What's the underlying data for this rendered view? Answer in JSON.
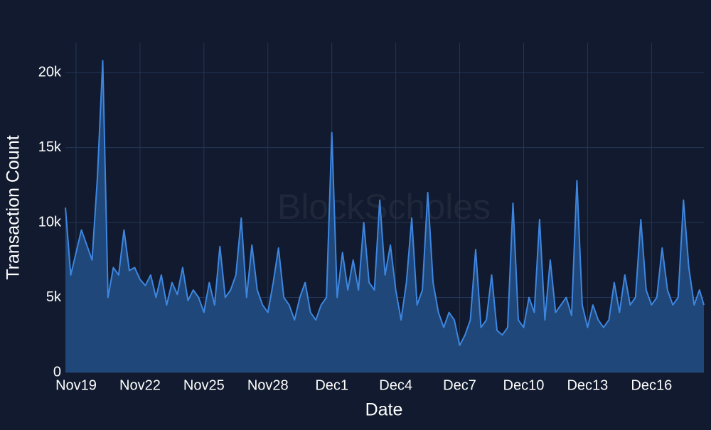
{
  "chart_data": {
    "type": "area",
    "watermark": "BlockScholes",
    "x_label": "Date",
    "y_label": "Transaction Count",
    "line_color": "#3d86e0",
    "fill_color": "#1f4779",
    "grid": true,
    "xlim": [
      "11-18 12:00",
      "12-18 11:00"
    ],
    "ylim": [
      0,
      22000
    ],
    "yticks": [
      0,
      {
        "value": 5000,
        "label": "5k"
      },
      {
        "value": 10000,
        "label": "10k"
      },
      {
        "value": 15000,
        "label": "15k"
      },
      {
        "value": 20000,
        "label": "20k"
      }
    ],
    "xticks": [
      {
        "value": "11-19 00:00",
        "label": "Nov19"
      },
      {
        "value": "11-22 00:00",
        "label": "Nov22"
      },
      {
        "value": "11-25 00:00",
        "label": "Nov25"
      },
      {
        "value": "11-28 00:00",
        "label": "Nov28"
      },
      {
        "value": "12-01 00:00",
        "label": "Dec1"
      },
      {
        "value": "12-04 00:00",
        "label": "Dec4"
      },
      {
        "value": "12-07 00:00",
        "label": "Dec7"
      },
      {
        "value": "12-10 00:00",
        "label": "Dec10"
      },
      {
        "value": "12-13 00:00",
        "label": "Dec13"
      },
      {
        "value": "12-16 00:00",
        "label": "Dec16"
      }
    ],
    "x": [
      "11-18 12:00",
      "11-18 18:00",
      "11-19 00:00",
      "11-19 06:00",
      "11-19 12:00",
      "11-19 18:00",
      "11-20 00:00",
      "11-20 06:00",
      "11-20 12:00",
      "11-20 18:00",
      "11-21 00:00",
      "11-21 06:00",
      "11-21 12:00",
      "11-21 18:00",
      "11-22 00:00",
      "11-22 06:00",
      "11-22 12:00",
      "11-22 18:00",
      "11-23 00:00",
      "11-23 06:00",
      "11-23 12:00",
      "11-23 18:00",
      "11-24 00:00",
      "11-24 06:00",
      "11-24 12:00",
      "11-24 18:00",
      "11-25 00:00",
      "11-25 06:00",
      "11-25 12:00",
      "11-25 18:00",
      "11-26 00:00",
      "11-26 06:00",
      "11-26 12:00",
      "11-26 18:00",
      "11-27 00:00",
      "11-27 06:00",
      "11-27 12:00",
      "11-27 18:00",
      "11-28 00:00",
      "11-28 06:00",
      "11-28 12:00",
      "11-28 18:00",
      "11-29 00:00",
      "11-29 06:00",
      "11-29 12:00",
      "11-29 18:00",
      "11-30 00:00",
      "11-30 06:00",
      "11-30 12:00",
      "11-30 18:00",
      "12-01 00:00",
      "12-01 06:00",
      "12-01 12:00",
      "12-01 18:00",
      "12-02 00:00",
      "12-02 06:00",
      "12-02 12:00",
      "12-02 18:00",
      "12-03 00:00",
      "12-03 06:00",
      "12-03 12:00",
      "12-03 18:00",
      "12-04 00:00",
      "12-04 06:00",
      "12-04 12:00",
      "12-04 18:00",
      "12-05 00:00",
      "12-05 06:00",
      "12-05 12:00",
      "12-05 18:00",
      "12-06 00:00",
      "12-06 06:00",
      "12-06 12:00",
      "12-06 18:00",
      "12-07 00:00",
      "12-07 06:00",
      "12-07 12:00",
      "12-07 18:00",
      "12-08 00:00",
      "12-08 06:00",
      "12-08 12:00",
      "12-08 18:00",
      "12-09 00:00",
      "12-09 06:00",
      "12-09 12:00",
      "12-09 18:00",
      "12-10 00:00",
      "12-10 06:00",
      "12-10 12:00",
      "12-10 18:00",
      "12-11 00:00",
      "12-11 06:00",
      "12-11 12:00",
      "12-11 18:00",
      "12-12 00:00",
      "12-12 06:00",
      "12-12 12:00",
      "12-12 18:00",
      "12-13 00:00",
      "12-13 06:00",
      "12-13 12:00",
      "12-13 18:00",
      "12-14 00:00",
      "12-14 06:00",
      "12-14 12:00",
      "12-14 18:00",
      "12-15 00:00",
      "12-15 06:00",
      "12-15 12:00",
      "12-15 18:00",
      "12-16 00:00",
      "12-16 06:00",
      "12-16 12:00",
      "12-16 18:00",
      "12-17 00:00",
      "12-17 06:00",
      "12-17 12:00",
      "12-17 18:00",
      "12-18 00:00",
      "12-18 06:00",
      "12-18 11:00"
    ],
    "values": [
      11000,
      6500,
      8000,
      9500,
      8500,
      7500,
      13000,
      20800,
      5000,
      7000,
      6500,
      9500,
      6800,
      7000,
      6200,
      5800,
      6500,
      5000,
      6500,
      4500,
      6000,
      5200,
      7000,
      4800,
      5500,
      5000,
      4000,
      6000,
      4500,
      8400,
      5000,
      5500,
      6500,
      10300,
      5000,
      8500,
      5500,
      4500,
      4000,
      6000,
      8300,
      5000,
      4500,
      3500,
      5000,
      6000,
      4000,
      3500,
      4500,
      5000,
      16000,
      5000,
      8000,
      5500,
      7500,
      5500,
      10000,
      6000,
      5500,
      11500,
      6500,
      8500,
      5500,
      3500,
      6000,
      10300,
      4500,
      5500,
      12000,
      6000,
      4000,
      3000,
      4000,
      3500,
      1800,
      2500,
      3500,
      8200,
      3000,
      3500,
      6500,
      2800,
      2500,
      3000,
      11300,
      3500,
      3000,
      5000,
      4000,
      10200,
      3500,
      7500,
      4000,
      4500,
      5000,
      3800,
      12800,
      4500,
      3000,
      4500,
      3500,
      3000,
      3500,
      6000,
      4000,
      6500,
      4500,
      5000,
      10200,
      5500,
      4500,
      5000,
      8300,
      5500,
      4500,
      5000,
      11500,
      7000,
      4500,
      5500,
      4500
    ]
  }
}
